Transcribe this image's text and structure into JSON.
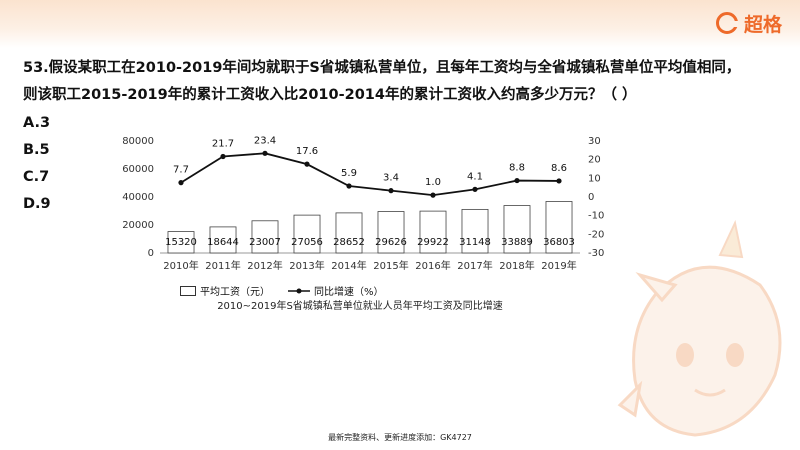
{
  "brand": {
    "name": "超格",
    "icon": "g-logo-icon",
    "color": "#ee6a2a"
  },
  "question": {
    "line1": "53.假设某职工在2010-2019年间均就职于S省城镇私营单位，且每年工资均与全省城镇私营单位平均值相同，",
    "line2": "则该职工2015-2019年的累计工资收入比2010-2014年的累计工资收入约高多少万元？（    ）"
  },
  "options": [
    "A.3",
    "B.5",
    "C.7",
    "D.9"
  ],
  "chart_data": {
    "type": "bar+line",
    "title": "2010~2019年S省城镇私营单位就业人员年平均工资及同比增速",
    "categories": [
      "2010年",
      "2011年",
      "2012年",
      "2013年",
      "2014年",
      "2015年",
      "2016年",
      "2017年",
      "2018年",
      "2019年"
    ],
    "series": [
      {
        "name": "平均工资（元）",
        "type": "bar",
        "axis": "left",
        "values": [
          15320,
          18644,
          23007,
          27056,
          28652,
          29626,
          29922,
          31148,
          33889,
          36803
        ]
      },
      {
        "name": "同比增速（%）",
        "type": "line",
        "axis": "right",
        "values": [
          7.7,
          21.7,
          23.4,
          17.6,
          5.9,
          3.4,
          1.0,
          4.1,
          8.8,
          8.6
        ]
      }
    ],
    "left_axis": {
      "ylim": [
        0,
        80000
      ],
      "ticks": [
        "0",
        "20000",
        "40000",
        "60000",
        "80000"
      ]
    },
    "right_axis": {
      "ylim": [
        -30,
        30
      ],
      "ticks": [
        "30",
        "20",
        "10",
        "0",
        "-10",
        "-20",
        "-30"
      ]
    },
    "grid": false,
    "legend": "bottom"
  },
  "footer": "最新完整资料、更新进度添加：GK4727"
}
